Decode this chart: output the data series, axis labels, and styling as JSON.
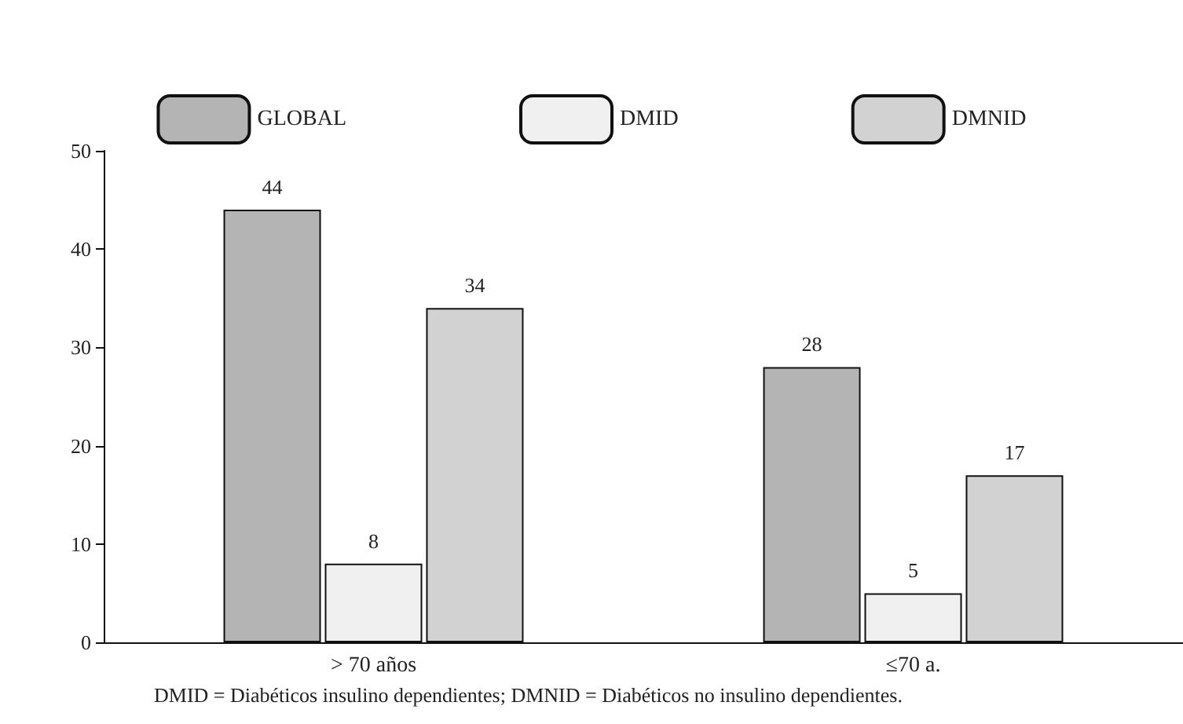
{
  "chart_data": {
    "type": "bar",
    "categories": [
      "> 70 años",
      "≤70 a."
    ],
    "series": [
      {
        "name": "GLOBAL",
        "color": "#b4b4b4",
        "values": [
          44,
          28
        ]
      },
      {
        "name": "DMID",
        "color": "#f0f0f0",
        "values": [
          8,
          5
        ]
      },
      {
        "name": "DMNID",
        "color": "#d2d2d2",
        "values": [
          34,
          17
        ]
      }
    ],
    "ylim": [
      0,
      50
    ],
    "yticks": [
      0,
      10,
      20,
      30,
      40,
      50
    ],
    "data_labels": true,
    "legend": "top",
    "grid": false,
    "annotations": [
      "DMID = Diabéticos insulino dependientes; DMNID = Diabéticos no insulino dependientes."
    ]
  }
}
